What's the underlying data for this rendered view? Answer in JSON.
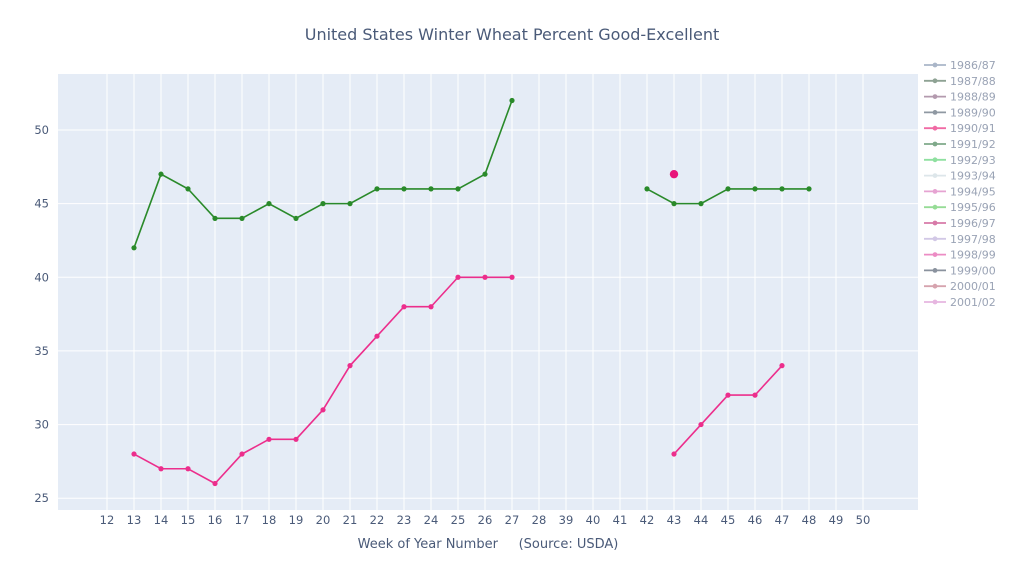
{
  "chart_data": {
    "type": "line",
    "title": "United States Winter Wheat Percent Good-Excellent",
    "xlabel": "Week of Year Number     (Source: USDA)",
    "ylabel": "",
    "x_categories": [
      "12",
      "13",
      "14",
      "15",
      "16",
      "17",
      "18",
      "19",
      "20",
      "21",
      "22",
      "23",
      "24",
      "25",
      "26",
      "27",
      "28",
      "39",
      "40",
      "41",
      "42",
      "43",
      "44",
      "45",
      "46",
      "47",
      "48",
      "49",
      "50"
    ],
    "y_ticks": [
      25,
      30,
      35,
      40,
      45,
      50
    ],
    "ylim": [
      24.2,
      53.8
    ],
    "grid": true,
    "legend_position": "right",
    "legend": [
      "1986/87",
      "1987/88",
      "1988/89",
      "1989/90",
      "1990/91",
      "1991/92",
      "1992/93",
      "1993/94",
      "1994/95",
      "1995/96",
      "1996/97",
      "1997/98",
      "1998/99",
      "1999/00",
      "2000/01",
      "2001/02"
    ],
    "legend_colors": [
      "#aab6c8",
      "#8ea294",
      "#b39aae",
      "#8f98a2",
      "#f06aa4",
      "#7fa98a",
      "#8fe0a0",
      "#dde6ea",
      "#e6a3d2",
      "#96dc96",
      "#d77aa8",
      "#d2c8e6",
      "#ec8cc4",
      "#8a929e",
      "#d6a3ae",
      "#e6b6e0"
    ],
    "series": [
      {
        "name": "",
        "color": "#2a8a2a",
        "segments": [
          {
            "x": [
              "13",
              "14",
              "15",
              "16",
              "17",
              "18",
              "19",
              "20",
              "21",
              "22",
              "23",
              "24",
              "25",
              "26",
              "27"
            ],
            "y": [
              42,
              47,
              46,
              44,
              44,
              45,
              44,
              45,
              45,
              46,
              46,
              46,
              46,
              47,
              52
            ]
          },
          {
            "x": [
              "42",
              "43",
              "44",
              "45",
              "46",
              "47",
              "48"
            ],
            "y": [
              46,
              45,
              45,
              46,
              46,
              46,
              46
            ]
          }
        ]
      },
      {
        "name": "",
        "color": "#ec2e8c",
        "segments": [
          {
            "x": [
              "13",
              "14",
              "15",
              "16",
              "17",
              "18",
              "19",
              "20",
              "21",
              "22",
              "23",
              "24",
              "25",
              "26",
              "27"
            ],
            "y": [
              28,
              27,
              27,
              26,
              28,
              29,
              29,
              31,
              34,
              36,
              38,
              38,
              40,
              40,
              40
            ]
          },
          {
            "x": [
              "43",
              "44",
              "45",
              "46",
              "47"
            ],
            "y": [
              28,
              30,
              32,
              32,
              34
            ]
          }
        ]
      }
    ],
    "extra_points": [
      {
        "x": "43",
        "y": 47,
        "color": "#e8157a"
      }
    ]
  }
}
